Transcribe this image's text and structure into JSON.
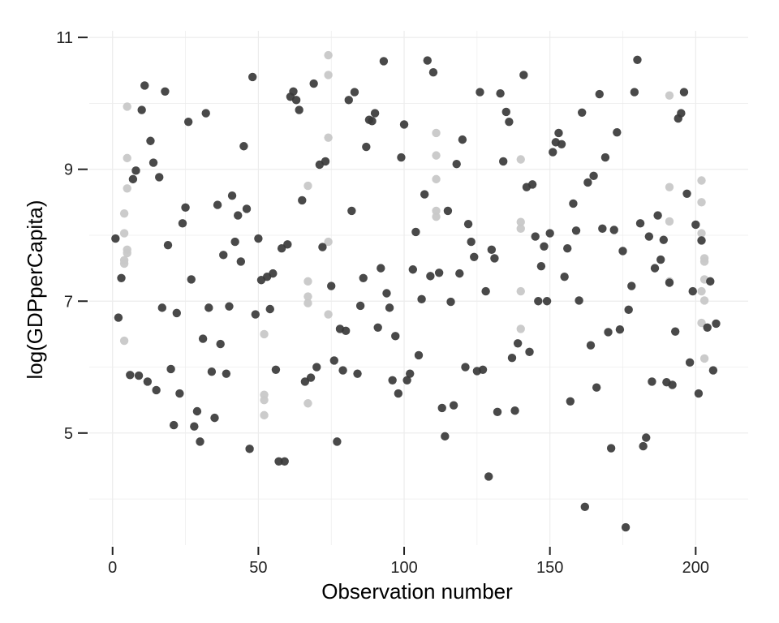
{
  "chart_data": {
    "type": "scatter",
    "title": "",
    "xlabel": "Observation number",
    "ylabel": "log(GDPperCapita)",
    "xlim": [
      -8,
      218
    ],
    "ylim": [
      3.3,
      11.1
    ],
    "x_ticks": [
      0,
      50,
      100,
      150,
      200
    ],
    "y_ticks": [
      5,
      7,
      9,
      11
    ],
    "grid": true,
    "colors": {
      "dark": "#3a3a3a",
      "light": "#c8c8c8",
      "grid": "#ececec"
    },
    "series": [
      {
        "shade": "dark",
        "points": [
          [
            1,
            7.95
          ],
          [
            2,
            6.75
          ],
          [
            3,
            7.35
          ],
          [
            6,
            5.88
          ],
          [
            7,
            8.85
          ],
          [
            8,
            8.98
          ],
          [
            9,
            5.87
          ],
          [
            10,
            9.9
          ],
          [
            11,
            10.27
          ],
          [
            12,
            5.78
          ],
          [
            13,
            9.43
          ],
          [
            14,
            9.1
          ],
          [
            15,
            5.65
          ],
          [
            16,
            8.88
          ],
          [
            17,
            6.9
          ],
          [
            18,
            10.18
          ],
          [
            19,
            7.85
          ],
          [
            20,
            5.97
          ],
          [
            21,
            5.12
          ],
          [
            22,
            6.82
          ],
          [
            23,
            5.6
          ],
          [
            24,
            8.18
          ],
          [
            25,
            8.42
          ],
          [
            26,
            9.72
          ],
          [
            27,
            7.33
          ],
          [
            28,
            5.1
          ],
          [
            29,
            5.33
          ],
          [
            30,
            4.87
          ],
          [
            31,
            6.43
          ],
          [
            32,
            9.85
          ],
          [
            33,
            6.9
          ],
          [
            34,
            5.93
          ],
          [
            35,
            5.23
          ],
          [
            36,
            8.46
          ],
          [
            37,
            6.35
          ],
          [
            38,
            7.7
          ],
          [
            39,
            5.9
          ],
          [
            40,
            6.92
          ],
          [
            41,
            8.6
          ],
          [
            42,
            7.9
          ],
          [
            43,
            8.3
          ],
          [
            44,
            7.6
          ],
          [
            45,
            9.35
          ],
          [
            46,
            8.4
          ],
          [
            47,
            4.76
          ],
          [
            48,
            10.4
          ],
          [
            49,
            6.8
          ],
          [
            50,
            7.95
          ],
          [
            51,
            7.32
          ],
          [
            53,
            7.37
          ],
          [
            54,
            6.88
          ],
          [
            55,
            7.42
          ],
          [
            56,
            5.96
          ],
          [
            57,
            4.57
          ],
          [
            58,
            7.8
          ],
          [
            59,
            4.57
          ],
          [
            60,
            7.86
          ],
          [
            61,
            10.1
          ],
          [
            62,
            10.18
          ],
          [
            63,
            10.05
          ],
          [
            64,
            9.9
          ],
          [
            65,
            8.53
          ],
          [
            66,
            5.78
          ],
          [
            68,
            5.84
          ],
          [
            69,
            10.3
          ],
          [
            70,
            6.0
          ],
          [
            71,
            9.07
          ],
          [
            72,
            7.82
          ],
          [
            73,
            9.12
          ],
          [
            75,
            7.23
          ],
          [
            76,
            6.1
          ],
          [
            77,
            4.87
          ],
          [
            78,
            6.58
          ],
          [
            79,
            5.95
          ],
          [
            80,
            6.55
          ],
          [
            81,
            10.05
          ],
          [
            82,
            8.37
          ],
          [
            83,
            10.17
          ],
          [
            84,
            5.9
          ],
          [
            85,
            6.93
          ],
          [
            86,
            7.35
          ],
          [
            87,
            9.34
          ],
          [
            88,
            9.75
          ],
          [
            89,
            9.73
          ],
          [
            90,
            9.85
          ],
          [
            91,
            6.6
          ],
          [
            92,
            7.5
          ],
          [
            93,
            10.64
          ],
          [
            94,
            7.12
          ],
          [
            95,
            6.9
          ],
          [
            96,
            5.8
          ],
          [
            97,
            6.47
          ],
          [
            98,
            5.6
          ],
          [
            99,
            9.18
          ],
          [
            100,
            9.68
          ],
          [
            101,
            5.8
          ],
          [
            102,
            5.9
          ],
          [
            103,
            7.48
          ],
          [
            104,
            8.05
          ],
          [
            105,
            6.18
          ],
          [
            106,
            7.03
          ],
          [
            107,
            8.62
          ],
          [
            108,
            10.65
          ],
          [
            109,
            7.38
          ],
          [
            110,
            10.47
          ],
          [
            112,
            7.43
          ],
          [
            113,
            5.38
          ],
          [
            114,
            4.95
          ],
          [
            115,
            8.37
          ],
          [
            116,
            6.99
          ],
          [
            117,
            5.42
          ],
          [
            118,
            9.08
          ],
          [
            119,
            7.42
          ],
          [
            120,
            9.45
          ],
          [
            121,
            6.0
          ],
          [
            122,
            8.17
          ],
          [
            123,
            7.9
          ],
          [
            124,
            7.67
          ],
          [
            125,
            5.94
          ],
          [
            126,
            10.17
          ],
          [
            127,
            5.96
          ],
          [
            128,
            7.15
          ],
          [
            129,
            4.34
          ],
          [
            130,
            7.78
          ],
          [
            131,
            7.65
          ],
          [
            132,
            5.32
          ],
          [
            133,
            10.15
          ],
          [
            134,
            9.12
          ],
          [
            135,
            9.87
          ],
          [
            136,
            9.72
          ],
          [
            137,
            6.14
          ],
          [
            138,
            5.34
          ],
          [
            139,
            6.36
          ],
          [
            141,
            10.43
          ],
          [
            142,
            8.73
          ],
          [
            143,
            6.23
          ],
          [
            144,
            8.77
          ],
          [
            145,
            7.98
          ],
          [
            146,
            7.0
          ],
          [
            147,
            7.53
          ],
          [
            148,
            7.83
          ],
          [
            149,
            7.0
          ],
          [
            150,
            8.03
          ],
          [
            151,
            9.26
          ],
          [
            152,
            9.41
          ],
          [
            153,
            9.55
          ],
          [
            154,
            9.38
          ],
          [
            155,
            7.37
          ],
          [
            156,
            7.8
          ],
          [
            157,
            5.48
          ],
          [
            158,
            8.48
          ],
          [
            159,
            8.07
          ],
          [
            160,
            7.01
          ],
          [
            161,
            9.86
          ],
          [
            162,
            3.88
          ],
          [
            163,
            8.8
          ],
          [
            164,
            6.33
          ],
          [
            165,
            8.9
          ],
          [
            166,
            5.69
          ],
          [
            167,
            10.14
          ],
          [
            168,
            8.1
          ],
          [
            169,
            9.18
          ],
          [
            170,
            6.53
          ],
          [
            171,
            4.77
          ],
          [
            172,
            8.08
          ],
          [
            173,
            9.56
          ],
          [
            174,
            6.57
          ],
          [
            175,
            7.76
          ],
          [
            176,
            3.57
          ],
          [
            177,
            6.87
          ],
          [
            178,
            7.23
          ],
          [
            179,
            10.17
          ],
          [
            180,
            10.66
          ],
          [
            181,
            8.18
          ],
          [
            182,
            4.8
          ],
          [
            183,
            4.93
          ],
          [
            184,
            7.98
          ],
          [
            185,
            5.78
          ],
          [
            186,
            7.5
          ],
          [
            187,
            8.3
          ],
          [
            188,
            7.63
          ],
          [
            189,
            7.93
          ],
          [
            190,
            5.77
          ],
          [
            191,
            7.28
          ],
          [
            192,
            5.73
          ],
          [
            193,
            6.54
          ],
          [
            194,
            9.77
          ],
          [
            195,
            9.85
          ],
          [
            196,
            10.17
          ],
          [
            197,
            8.63
          ],
          [
            198,
            6.07
          ],
          [
            199,
            7.15
          ],
          [
            200,
            8.16
          ],
          [
            201,
            5.6
          ],
          [
            202,
            7.92
          ],
          [
            204,
            6.6
          ],
          [
            205,
            7.3
          ],
          [
            206,
            5.95
          ],
          [
            207,
            6.66
          ]
        ]
      },
      {
        "shade": "light",
        "points": [
          [
            4,
            8.33
          ],
          [
            4,
            8.03
          ],
          [
            4,
            7.62
          ],
          [
            4,
            7.57
          ],
          [
            4,
            6.4
          ],
          [
            5,
            9.95
          ],
          [
            5,
            9.17
          ],
          [
            5,
            8.71
          ],
          [
            5,
            7.78
          ],
          [
            5,
            7.73
          ],
          [
            52,
            6.5
          ],
          [
            52,
            5.58
          ],
          [
            52,
            5.5
          ],
          [
            52,
            5.27
          ],
          [
            67,
            8.75
          ],
          [
            67,
            7.3
          ],
          [
            67,
            7.07
          ],
          [
            67,
            6.97
          ],
          [
            67,
            5.45
          ],
          [
            74,
            10.73
          ],
          [
            74,
            10.43
          ],
          [
            74,
            9.48
          ],
          [
            74,
            7.9
          ],
          [
            74,
            6.8
          ],
          [
            111,
            9.55
          ],
          [
            111,
            9.21
          ],
          [
            111,
            8.85
          ],
          [
            111,
            8.37
          ],
          [
            111,
            8.28
          ],
          [
            140,
            9.15
          ],
          [
            140,
            8.2
          ],
          [
            140,
            8.1
          ],
          [
            140,
            7.15
          ],
          [
            140,
            6.58
          ],
          [
            191,
            10.12
          ],
          [
            191,
            8.73
          ],
          [
            191,
            8.21
          ],
          [
            191,
            7.3
          ],
          [
            202,
            8.83
          ],
          [
            202,
            8.5
          ],
          [
            202,
            8.03
          ],
          [
            202,
            7.15
          ],
          [
            202,
            6.67
          ],
          [
            203,
            7.65
          ],
          [
            203,
            7.6
          ],
          [
            203,
            7.33
          ],
          [
            203,
            7.01
          ],
          [
            203,
            6.13
          ]
        ]
      }
    ]
  }
}
